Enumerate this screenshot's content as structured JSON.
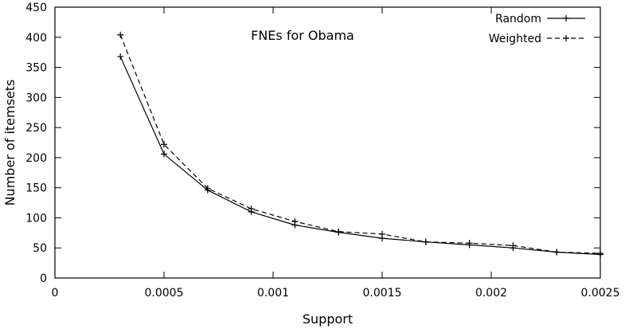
{
  "chart_data": {
    "type": "line",
    "title": "FNEs for Obama",
    "xlabel": "Support",
    "ylabel": "Number of itemsets",
    "xlim": [
      0,
      0.0025
    ],
    "ylim": [
      0,
      450
    ],
    "x_ticks": [
      0,
      0.0005,
      0.001,
      0.0015,
      0.002,
      0.0025
    ],
    "x_tick_labels": [
      "0",
      "0.0005",
      "0.001",
      "0.0015",
      "0.002",
      "0.0025"
    ],
    "y_ticks": [
      0,
      50,
      100,
      150,
      200,
      250,
      300,
      350,
      400,
      450
    ],
    "y_tick_labels": [
      "0",
      "50",
      "100",
      "150",
      "200",
      "250",
      "300",
      "350",
      "400",
      "450"
    ],
    "grid": false,
    "legend_position": "top-right",
    "x": [
      0.0003,
      0.0005,
      0.0007,
      0.0009,
      0.0011,
      0.0013,
      0.0015,
      0.0017,
      0.0019,
      0.0021,
      0.0023,
      0.0025
    ],
    "series": [
      {
        "name": "Random",
        "line_style": "solid",
        "color": "#000000",
        "values": [
          368,
          206,
          146,
          110,
          88,
          76,
          66,
          60,
          55,
          50,
          43,
          39
        ]
      },
      {
        "name": "Weighted",
        "line_style": "dashed",
        "color": "#000000",
        "values": [
          404,
          222,
          149,
          115,
          94,
          77,
          73,
          60,
          58,
          54,
          43,
          41
        ]
      }
    ]
  }
}
